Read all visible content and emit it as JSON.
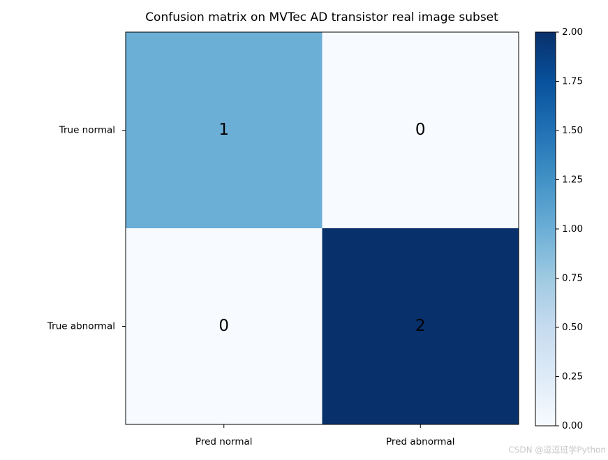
{
  "chart_data": {
    "type": "heatmap",
    "title": "Confusion matrix on MVTec AD transistor real image subset",
    "x_categories": [
      "Pred normal",
      "Pred abnormal"
    ],
    "y_categories": [
      "True normal",
      "True abnormal"
    ],
    "values": [
      [
        1,
        0
      ],
      [
        0,
        2
      ]
    ],
    "colormap": "Blues",
    "colorbar": {
      "ylim": [
        0,
        2
      ],
      "yticks": [
        {
          "value": 0,
          "label": "0.00"
        },
        {
          "value": 0.25,
          "label": "0.25"
        },
        {
          "value": 0.5,
          "label": "0.50"
        },
        {
          "value": 0.75,
          "label": "0.75"
        },
        {
          "value": 1,
          "label": "1.00"
        },
        {
          "value": 1.25,
          "label": "1.25"
        },
        {
          "value": 1.5,
          "label": "1.50"
        },
        {
          "value": 1.75,
          "label": "1.75"
        },
        {
          "value": 2,
          "label": "2.00"
        }
      ]
    },
    "watermark": "CSDN @逗逗班学Python"
  }
}
